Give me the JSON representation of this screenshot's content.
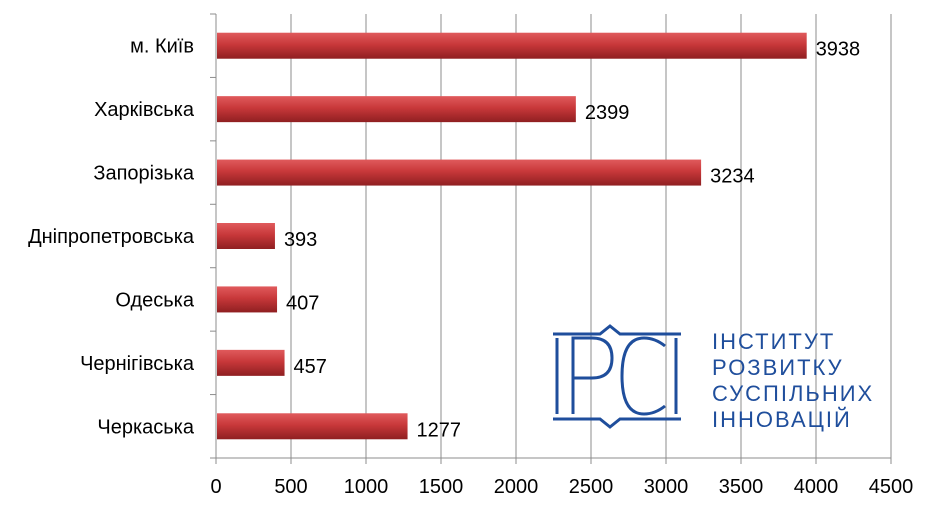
{
  "chart_data": {
    "type": "bar",
    "orientation": "horizontal",
    "categories": [
      "м. Київ",
      "Харківська",
      "Запорізька",
      "Дніпропетровська",
      "Одеська",
      "Чернігівська",
      "Черкаська"
    ],
    "values": [
      3938,
      2399,
      3234,
      393,
      407,
      457,
      1277
    ],
    "xlim": [
      0,
      4500
    ],
    "x_ticks": [
      0,
      500,
      1000,
      1500,
      2000,
      2500,
      3000,
      3500,
      4000,
      4500
    ],
    "grid": "vertical",
    "bar_color": "#c0393b",
    "data_labels": true
  },
  "logo": {
    "mark": "IPCI",
    "lines": [
      "ІНСТИТУТ",
      "РОЗВИТКУ",
      "СУСПІЛЬНИХ",
      "ІННОВАЦІЙ"
    ],
    "color": "#1f4e9c"
  }
}
